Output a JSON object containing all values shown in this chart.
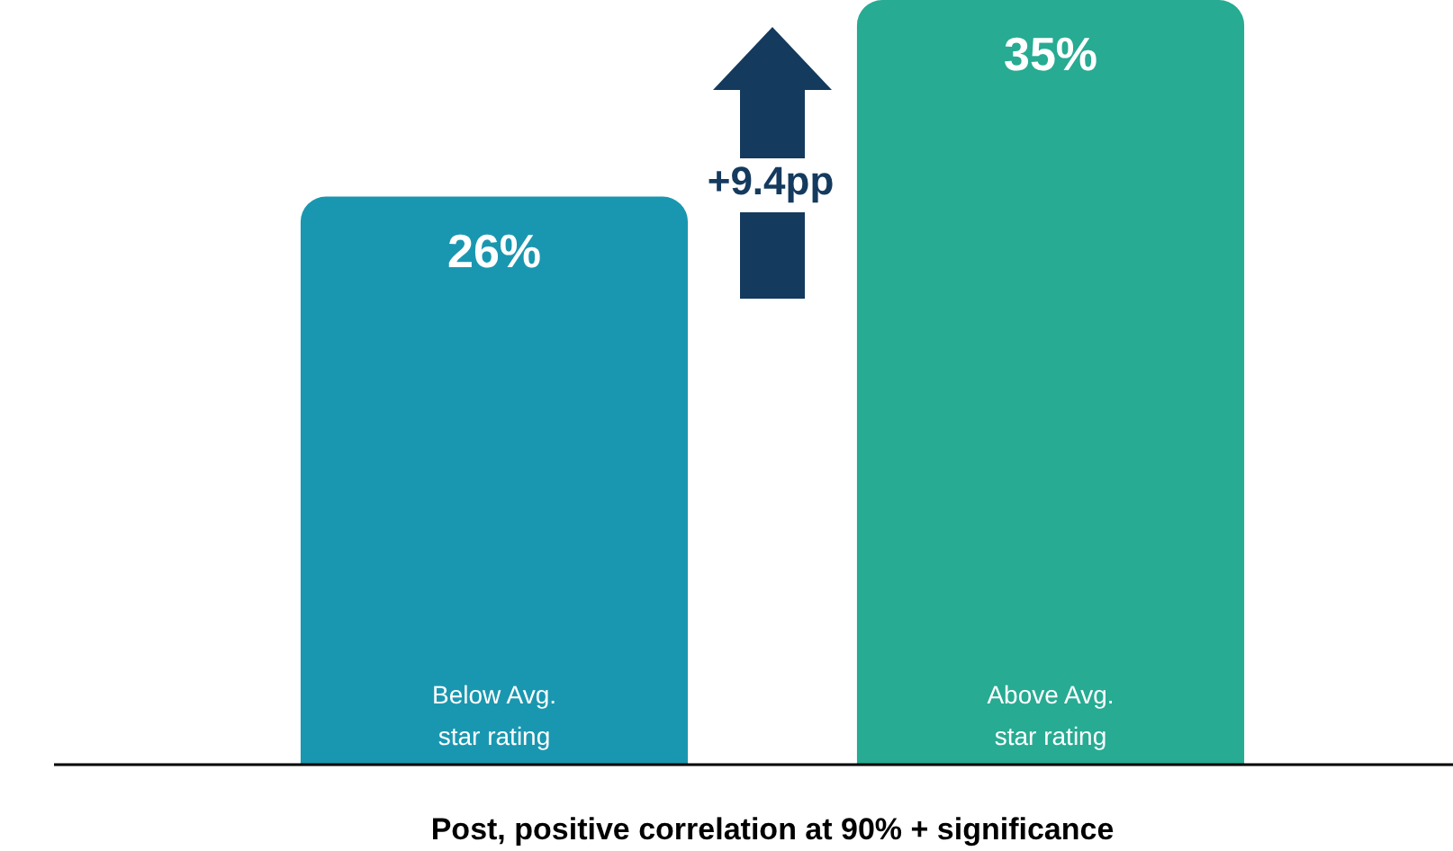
{
  "chart_data": {
    "type": "bar",
    "xlabel": "Post, positive correlation at 90% + significance",
    "categories": [
      "Below Avg. star rating",
      "Above Avg. star rating"
    ],
    "values": [
      26,
      35
    ],
    "colors": [
      "#1a97b0",
      "#27ab93"
    ],
    "value_labels": [
      "26%",
      "35%"
    ],
    "tick_labels": false,
    "legend": false,
    "annotations": [
      "+9.4pp"
    ]
  }
}
